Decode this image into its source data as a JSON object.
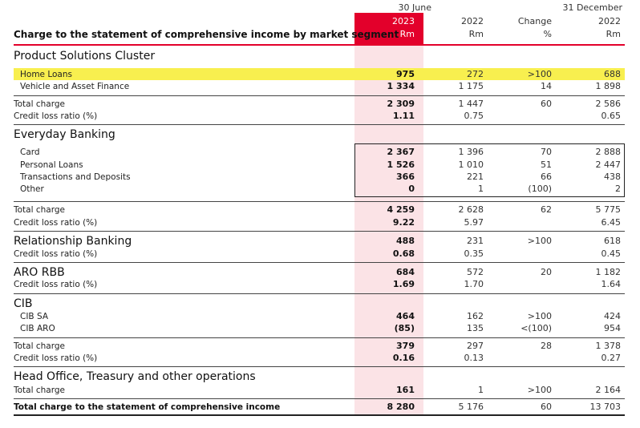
{
  "header": {
    "period1": "30 June",
    "period2": "31 December",
    "title": "Charge to the statement of comprehensive income by market segment",
    "col_2023_year": "2023",
    "col_2023_unit": "Rm",
    "col_2022_year": "2022",
    "col_2022_unit": "Rm",
    "col_change_label": "Change",
    "col_change_unit": "%",
    "col_dec_year": "2022",
    "col_dec_unit": "Rm"
  },
  "psc": {
    "heading": "Product Solutions Cluster",
    "home": {
      "label": "Home Loans",
      "v2023": "975",
      "v2022": "272",
      "change": ">100",
      "vdec": "688"
    },
    "vaf": {
      "label": "Vehicle and Asset Finance",
      "v2023": "1 334",
      "v2022": "1 175",
      "change": "14",
      "vdec": "1 898"
    },
    "total": {
      "label": "Total charge",
      "v2023": "2 309",
      "v2022": "1 447",
      "change": "60",
      "vdec": "2 586"
    },
    "clr": {
      "label": "Credit loss ratio (%)",
      "v2023": "1.11",
      "v2022": "0.75",
      "vdec": "0.65"
    }
  },
  "eb": {
    "heading": "Everyday Banking",
    "card": {
      "label": "Card",
      "v2023": "2 367",
      "v2022": "1 396",
      "change": "70",
      "vdec": "2 888"
    },
    "personal": {
      "label": "Personal Loans",
      "v2023": "1 526",
      "v2022": "1 010",
      "change": "51",
      "vdec": "2 447"
    },
    "trans": {
      "label": "Transactions and Deposits",
      "v2023": "366",
      "v2022": "221",
      "change": "66",
      "vdec": "438"
    },
    "other": {
      "label": "Other",
      "v2023": "0",
      "v2022": "1",
      "change": "(100)",
      "vdec": "2"
    },
    "total": {
      "label": "Total charge",
      "v2023": "4 259",
      "v2022": "2 628",
      "change": "62",
      "vdec": "5 775"
    },
    "clr": {
      "label": "Credit loss ratio (%)",
      "v2023": "9.22",
      "v2022": "5.97",
      "vdec": "6.45"
    }
  },
  "rb": {
    "heading": "Relationship Banking",
    "total": {
      "v2023": "488",
      "v2022": "231",
      "change": ">100",
      "vdec": "618"
    },
    "clr": {
      "label": "Credit loss ratio (%)",
      "v2023": "0.68",
      "v2022": "0.35",
      "vdec": "0.45"
    }
  },
  "aro": {
    "heading": "ARO RBB",
    "total": {
      "v2023": "684",
      "v2022": "572",
      "change": "20",
      "vdec": "1 182"
    },
    "clr": {
      "label": "Credit loss ratio (%)",
      "v2023": "1.69",
      "v2022": "1.70",
      "vdec": "1.64"
    }
  },
  "cib": {
    "heading": "CIB",
    "sa": {
      "label": "CIB SA",
      "v2023": "464",
      "v2022": "162",
      "change": ">100",
      "vdec": "424"
    },
    "aro": {
      "label": "CIB ARO",
      "v2023": "(85)",
      "v2022": "135",
      "change": "<(100)",
      "vdec": "954"
    },
    "total": {
      "label": "Total charge",
      "v2023": "379",
      "v2022": "297",
      "change": "28",
      "vdec": "1 378"
    },
    "clr": {
      "label": "Credit loss ratio (%)",
      "v2023": "0.16",
      "v2022": "0.13",
      "vdec": "0.27"
    }
  },
  "ho": {
    "heading": "Head Office, Treasury and other operations",
    "total": {
      "label": "Total charge",
      "v2023": "161",
      "v2022": "1",
      "change": ">100",
      "vdec": "2 164"
    }
  },
  "grand": {
    "label": "Total charge to the statement of comprehensive income",
    "v2023": "8 280",
    "v2022": "5 176",
    "change": "60",
    "vdec": "13 703"
  }
}
